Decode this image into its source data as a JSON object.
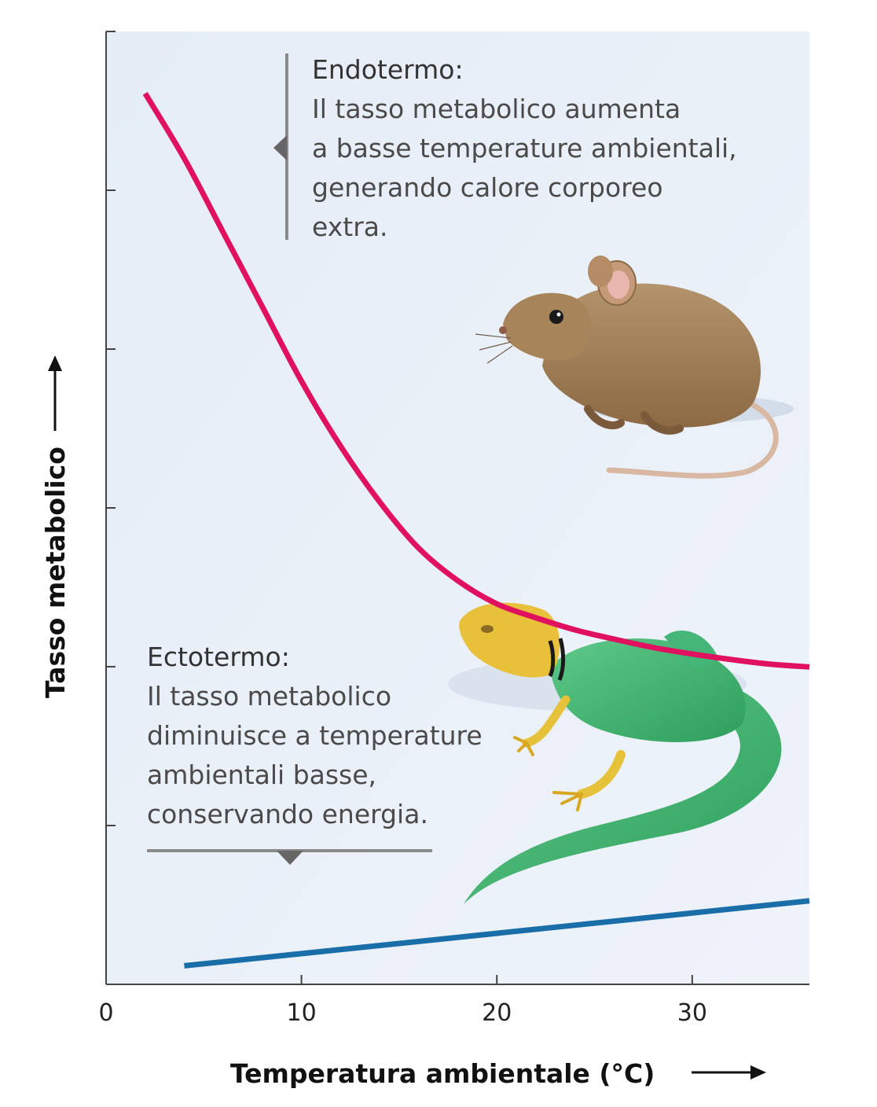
{
  "chart_data": {
    "type": "line",
    "xlabel": "Temperatura ambientale (°C)",
    "ylabel": "Tasso metabolico",
    "xlim": [
      0,
      36
    ],
    "x_ticks": [
      0,
      10,
      20,
      30
    ],
    "y_ticks": 6,
    "y_tick_labels": false,
    "grid": false,
    "legend": "none",
    "series": [
      {
        "name": "Endotermo",
        "color": "#e0115f",
        "x": [
          2,
          4,
          6,
          8,
          10,
          12,
          14,
          16,
          18,
          20,
          22,
          24,
          26,
          28,
          30,
          32,
          34,
          36
        ],
        "y": [
          9.6,
          8.9,
          8.1,
          7.3,
          6.5,
          5.8,
          5.2,
          4.7,
          4.35,
          4.1,
          3.95,
          3.82,
          3.72,
          3.63,
          3.56,
          3.5,
          3.45,
          3.42
        ]
      },
      {
        "name": "Ectotermo",
        "color": "#1a6ea8",
        "x": [
          4,
          36
        ],
        "y": [
          0.2,
          0.9
        ]
      }
    ]
  },
  "annotations": {
    "endo_title": "Endotermo:",
    "endo_lines": [
      "Il tasso metabolico aumenta",
      "a basse temperature ambientali,",
      "generando calore corporeo",
      "extra."
    ],
    "ecto_title": "Ectotermo:",
    "ecto_lines": [
      "Il tasso metabolico",
      "diminuisce a temperature",
      "ambientali basse,",
      "conservando energia."
    ]
  },
  "illustrations": {
    "mouse": "mouse-illustration",
    "lizard": "lizard-illustration"
  },
  "colors": {
    "plot_background": "#e8eef7",
    "axis": "#444444",
    "annotation_bracket": "#8a8a8a"
  }
}
